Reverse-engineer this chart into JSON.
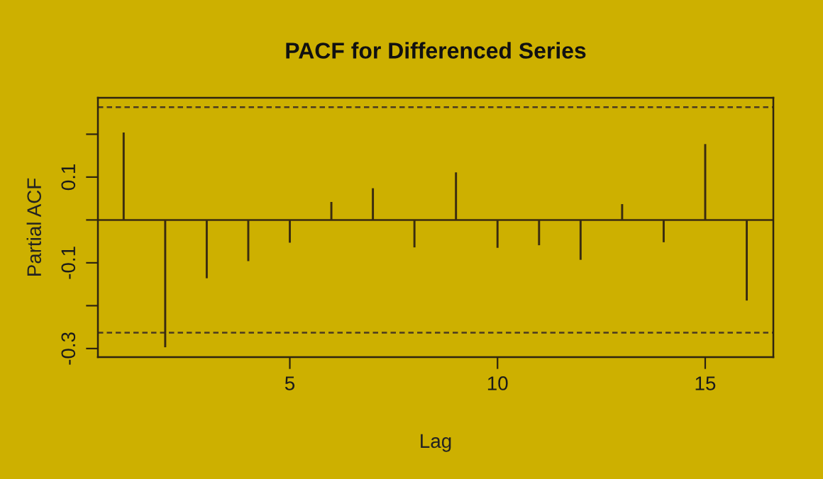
{
  "chart_data": {
    "type": "bar",
    "title": "PACF for Differenced Series",
    "xlabel": "Lag",
    "ylabel": "Partial ACF",
    "x": [
      1,
      2,
      3,
      4,
      5,
      6,
      7,
      8,
      9,
      10,
      11,
      12,
      13,
      14,
      15,
      16
    ],
    "values": [
      0.204,
      -0.297,
      -0.136,
      -0.096,
      -0.053,
      0.042,
      0.074,
      -0.064,
      0.111,
      -0.065,
      -0.059,
      -0.093,
      0.037,
      -0.052,
      0.177,
      -0.188
    ],
    "color": "#3a2c10",
    "xlim": [
      0.38,
      16.64
    ],
    "xticks": [
      5,
      10,
      15
    ],
    "ylim": [
      -0.32,
      0.285
    ],
    "yticks": [
      {
        "value": -0.3,
        "label": "-0.3"
      },
      {
        "value": -0.2,
        "label": null
      },
      {
        "value": -0.1,
        "label": "-0.1"
      },
      {
        "value": 0.0,
        "label": null
      },
      {
        "value": 0.1,
        "label": "0.1"
      },
      {
        "value": 0.2,
        "label": null
      }
    ],
    "ref_lines": [
      {
        "axis": "y",
        "value": 0,
        "line_style": "solid",
        "color": "#3a2c10"
      },
      {
        "axis": "y",
        "value": 0.263,
        "line_style": "dashed",
        "color": "#4a3a20"
      },
      {
        "axis": "y",
        "value": -0.263,
        "line_style": "dashed",
        "color": "#4a3a20"
      }
    ],
    "grid": false,
    "legend": false
  }
}
